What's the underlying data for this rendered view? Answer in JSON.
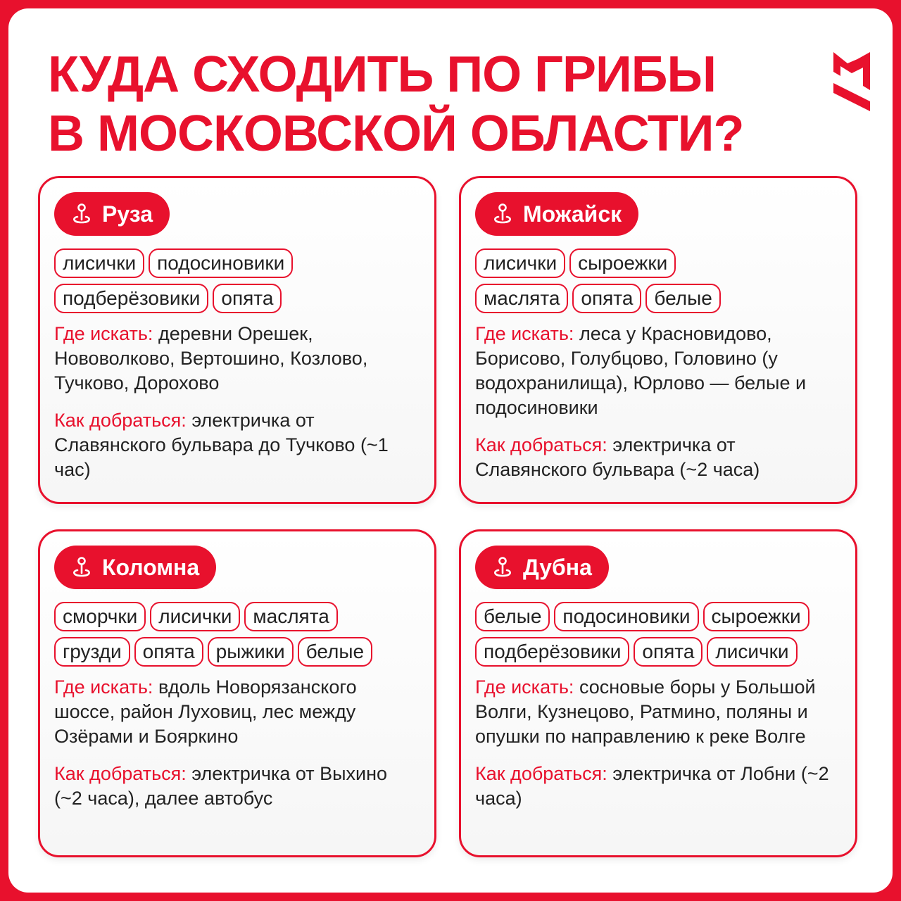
{
  "title": {
    "line1": "КУДА СХОДИТЬ ПО ГРИБЫ",
    "line2": "В МОСКОВСКОЙ ОБЛАСТИ?"
  },
  "brand_color": "#e8112d",
  "labels": {
    "where": "Где искать:",
    "how": "Как добраться:"
  },
  "cards": [
    {
      "name": "Руза",
      "icon": "map-pin-icon",
      "tag_rows": [
        [
          "лисички",
          "подосиновики"
        ],
        [
          "подберёзовики",
          "опята"
        ]
      ],
      "where": "деревни Орешек, Нововолково, Вертошино, Козлово, Тучково, Дорохово",
      "how": "электричка от Славянского бульвара до Тучково (~1 час)"
    },
    {
      "name": "Можайск",
      "icon": "map-pin-icon",
      "tag_rows": [
        [
          "лисички",
          "сыроежки"
        ],
        [
          "маслята",
          "опята",
          "белые"
        ]
      ],
      "where": "леса у Красновидово, Борисово, Голубцово, Головино (у водохранилища), Юрлово — белые и подосиновики",
      "how": "электричка от Славянского бульвара (~2 часа)"
    },
    {
      "name": "Коломна",
      "icon": "map-pin-icon",
      "tag_rows": [
        [
          "сморчки",
          "лисички",
          "маслята"
        ],
        [
          "грузди",
          "опята",
          "рыжики",
          "белые"
        ]
      ],
      "where": "вдоль Новорязанского шоссе, район Луховиц, лес между Озёрами и Бояркино",
      "how": "электричка от Выхино (~2 часа), далее автобус"
    },
    {
      "name": "Дубна",
      "icon": "map-pin-icon",
      "tag_rows": [
        [
          "белые",
          "подосиновики",
          "сыроежки"
        ],
        [
          "подберёзовики",
          "опята",
          "лисички"
        ]
      ],
      "where": "сосновые боры у Большой Волги, Кузнецово, Ратмино, поляны и опушки по направлению к реке Волге",
      "how": "электричка от Лобни (~2 часа)"
    }
  ]
}
